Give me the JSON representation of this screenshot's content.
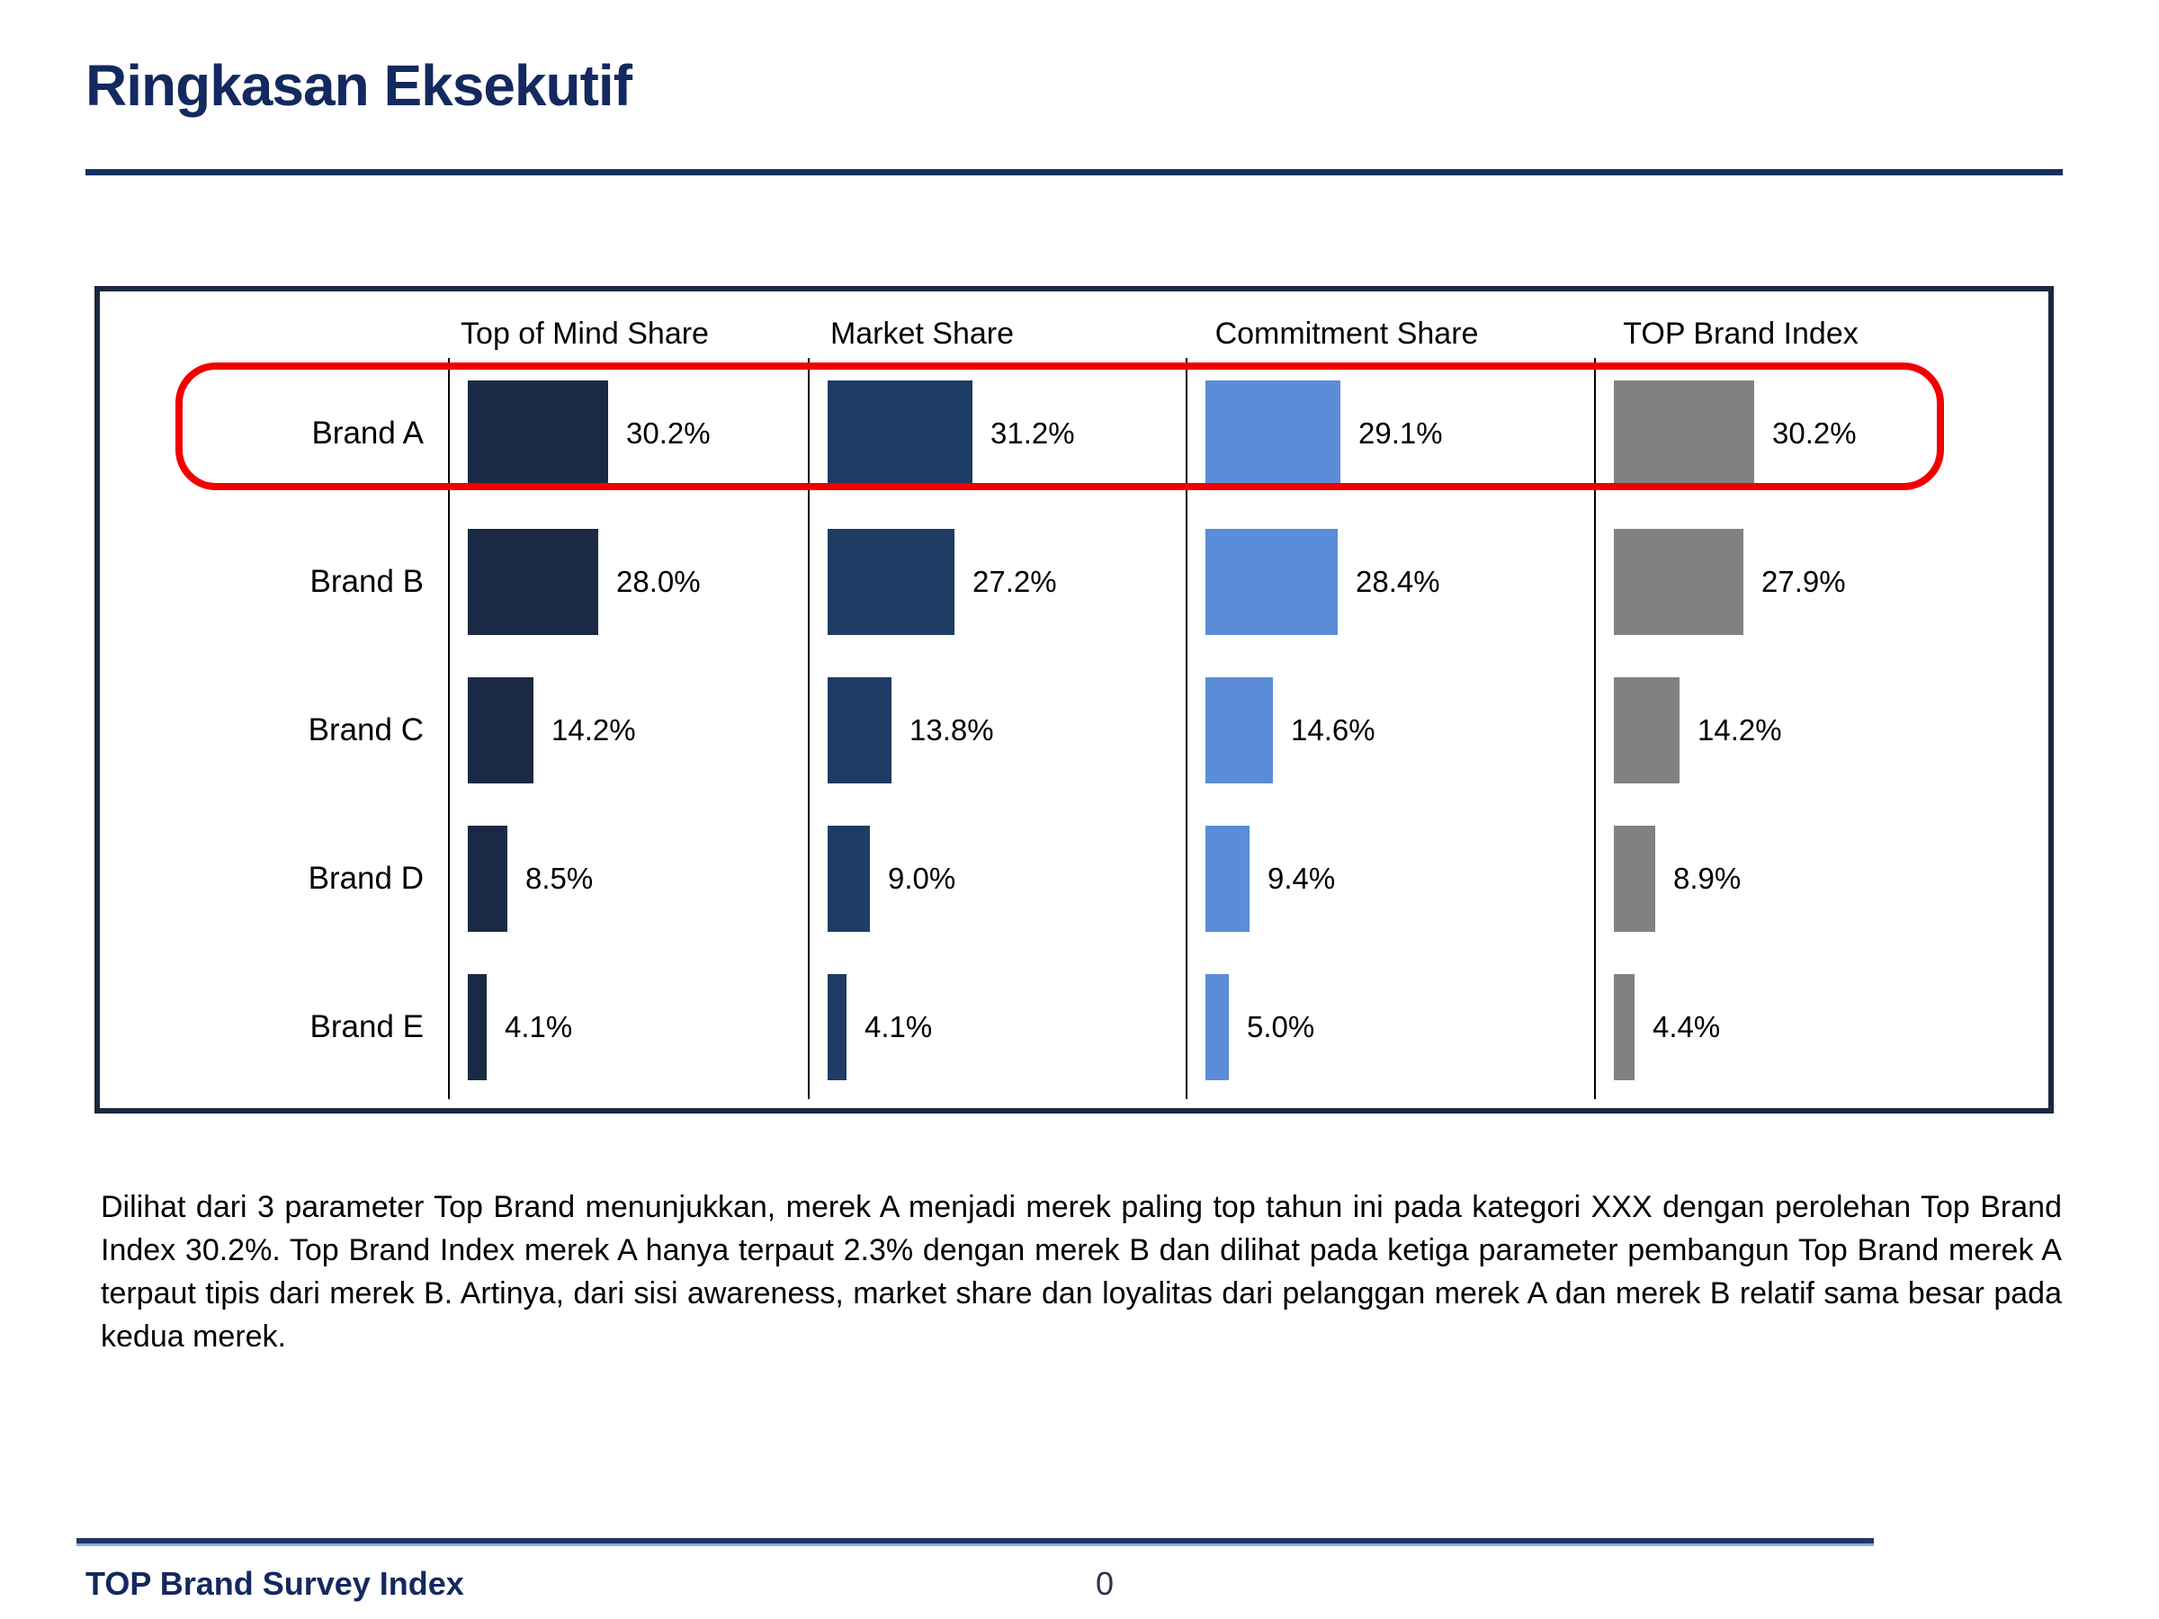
{
  "slide": {
    "title": "Ringkasan Eksekutif",
    "body_text": "Dilihat dari 3 parameter Top Brand menunjukkan, merek A menjadi merek paling top tahun ini pada kategori XXX dengan perolehan Top Brand Index 30.2%. Top Brand Index merek A hanya terpaut 2.3% dengan merek B dan dilihat pada ketiga parameter pembangun Top Brand merek A terpaut tipis dari merek B. Artinya, dari sisi awareness, market share dan loyalitas dari pelanggan merek A dan merek B relatif sama besar pada kedua merek.",
    "footer_label": "TOP Brand Survey Index",
    "page_number": "0"
  },
  "chart_data": {
    "type": "bar",
    "orientation": "horizontal",
    "categories": [
      "Brand A",
      "Brand B",
      "Brand C",
      "Brand D",
      "Brand E"
    ],
    "series": [
      {
        "name": "Top of Mind Share",
        "color": "#1B2A44",
        "values": [
          30.2,
          28.0,
          14.2,
          8.5,
          4.1
        ]
      },
      {
        "name": "Market Share",
        "color": "#1F3C64",
        "values": [
          31.2,
          27.2,
          13.8,
          9.0,
          4.1
        ]
      },
      {
        "name": "Commitment Share",
        "color": "#5A8CD7",
        "values": [
          29.1,
          28.4,
          14.6,
          9.4,
          5.0
        ]
      },
      {
        "name": "TOP Brand Index",
        "color": "#818181",
        "values": [
          30.2,
          27.9,
          14.2,
          8.9,
          4.4
        ]
      }
    ],
    "value_suffix": "%",
    "value_decimals": 1,
    "highlight": {
      "category": "Brand A",
      "color": "#F20000"
    },
    "legend_position": "column-headers",
    "grid": false
  }
}
